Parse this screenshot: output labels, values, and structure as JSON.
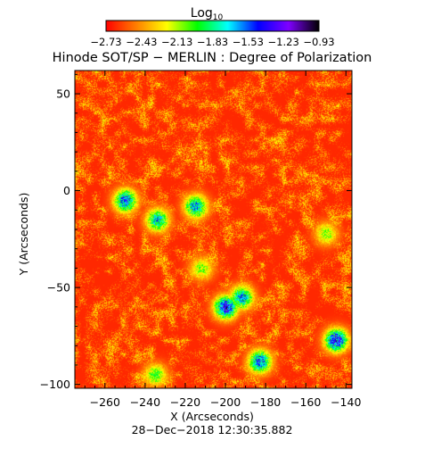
{
  "chart_data": {
    "type": "heatmap",
    "title": "Hinode SOT/SP − MERLIN : Degree of Polarization",
    "colorbar_title": "Log",
    "colorbar_title_sub": "10",
    "colorbar_ticks": [
      "−2.73",
      "−2.43",
      "−2.13",
      "−1.83",
      "−1.53",
      "−1.23",
      "−0.93"
    ],
    "colorbar_range": [
      -2.73,
      -0.93
    ],
    "colormap": [
      "#ff0000",
      "#ff7f00",
      "#ffff00",
      "#00ff00",
      "#00ffff",
      "#0000ff",
      "#7f00ff",
      "#000000"
    ],
    "xlabel": "X (Arcseconds)",
    "ylabel": "Y (Arcseconds)",
    "xlim": [
      -275,
      -137
    ],
    "ylim": [
      -102,
      62
    ],
    "x_ticks": [
      -260,
      -240,
      -220,
      -200,
      -180,
      -160,
      -140
    ],
    "x_tick_labels": [
      "−260",
      "−240",
      "−220",
      "−200",
      "−180",
      "−160",
      "−140"
    ],
    "y_ticks": [
      50,
      0,
      -50,
      -100
    ],
    "y_tick_labels": [
      "50",
      "0",
      "−50",
      "−100"
    ],
    "background_level": -2.65,
    "field_features": [
      {
        "x": -250,
        "y": -5,
        "level": -1.4
      },
      {
        "x": -234,
        "y": -15,
        "level": -1.6
      },
      {
        "x": -215,
        "y": -8,
        "level": -1.5
      },
      {
        "x": -200,
        "y": -60,
        "level": -1.2
      },
      {
        "x": -212,
        "y": -40,
        "level": -2.0
      },
      {
        "x": -192,
        "y": -55,
        "level": -1.5
      },
      {
        "x": -145,
        "y": -77,
        "level": -1.2
      },
      {
        "x": -183,
        "y": -88,
        "level": -1.4
      },
      {
        "x": -235,
        "y": -95,
        "level": -1.9
      },
      {
        "x": -150,
        "y": -22,
        "level": -2.0
      }
    ],
    "timestamp": "28−Dec−2018 12:30:35.882"
  }
}
